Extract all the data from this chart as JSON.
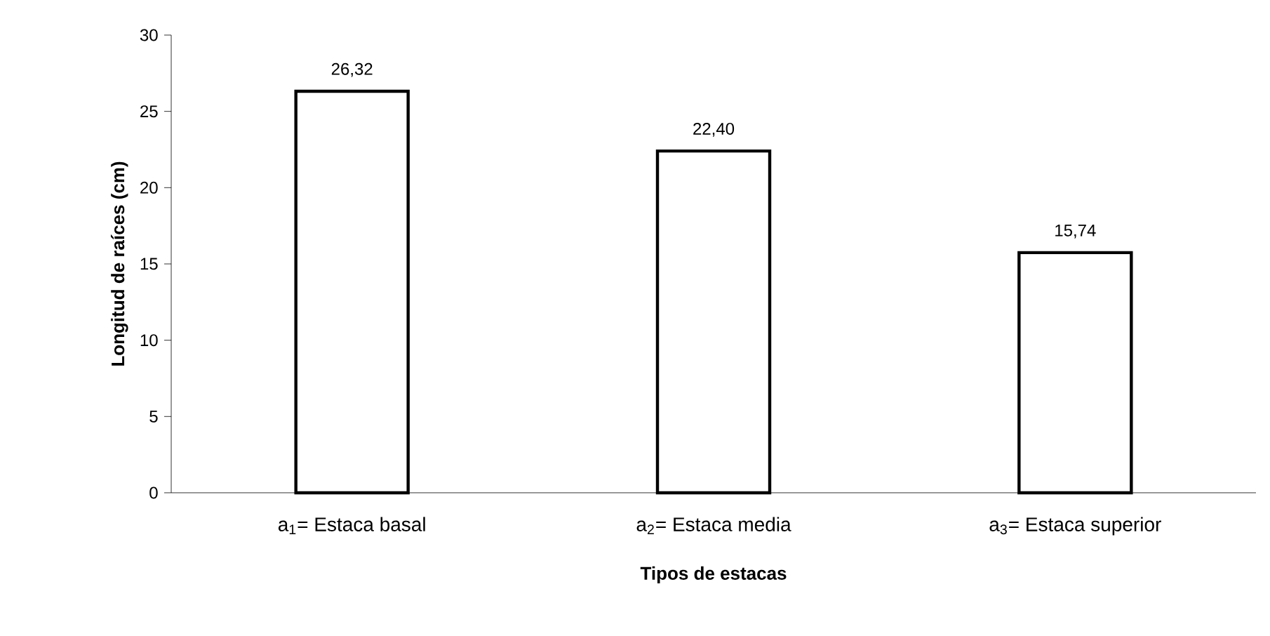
{
  "chart_data": {
    "type": "bar",
    "xlabel": "Tipos de estacas",
    "ylabel": "Longitud de raíces (cm)",
    "categories": [
      "a$_{1}$= Estaca basal",
      "a$_{2}$= Estaca media",
      "a$_{3}$= Estaca superior"
    ],
    "values": [
      26.32,
      22.4,
      15.74
    ],
    "value_labels": [
      "26,32",
      "22,40",
      "15,74"
    ],
    "color": "#ffffff",
    "ylim": [
      0,
      30
    ],
    "yticks": [
      0,
      5,
      10,
      15,
      20,
      25,
      30
    ],
    "grid": false
  }
}
